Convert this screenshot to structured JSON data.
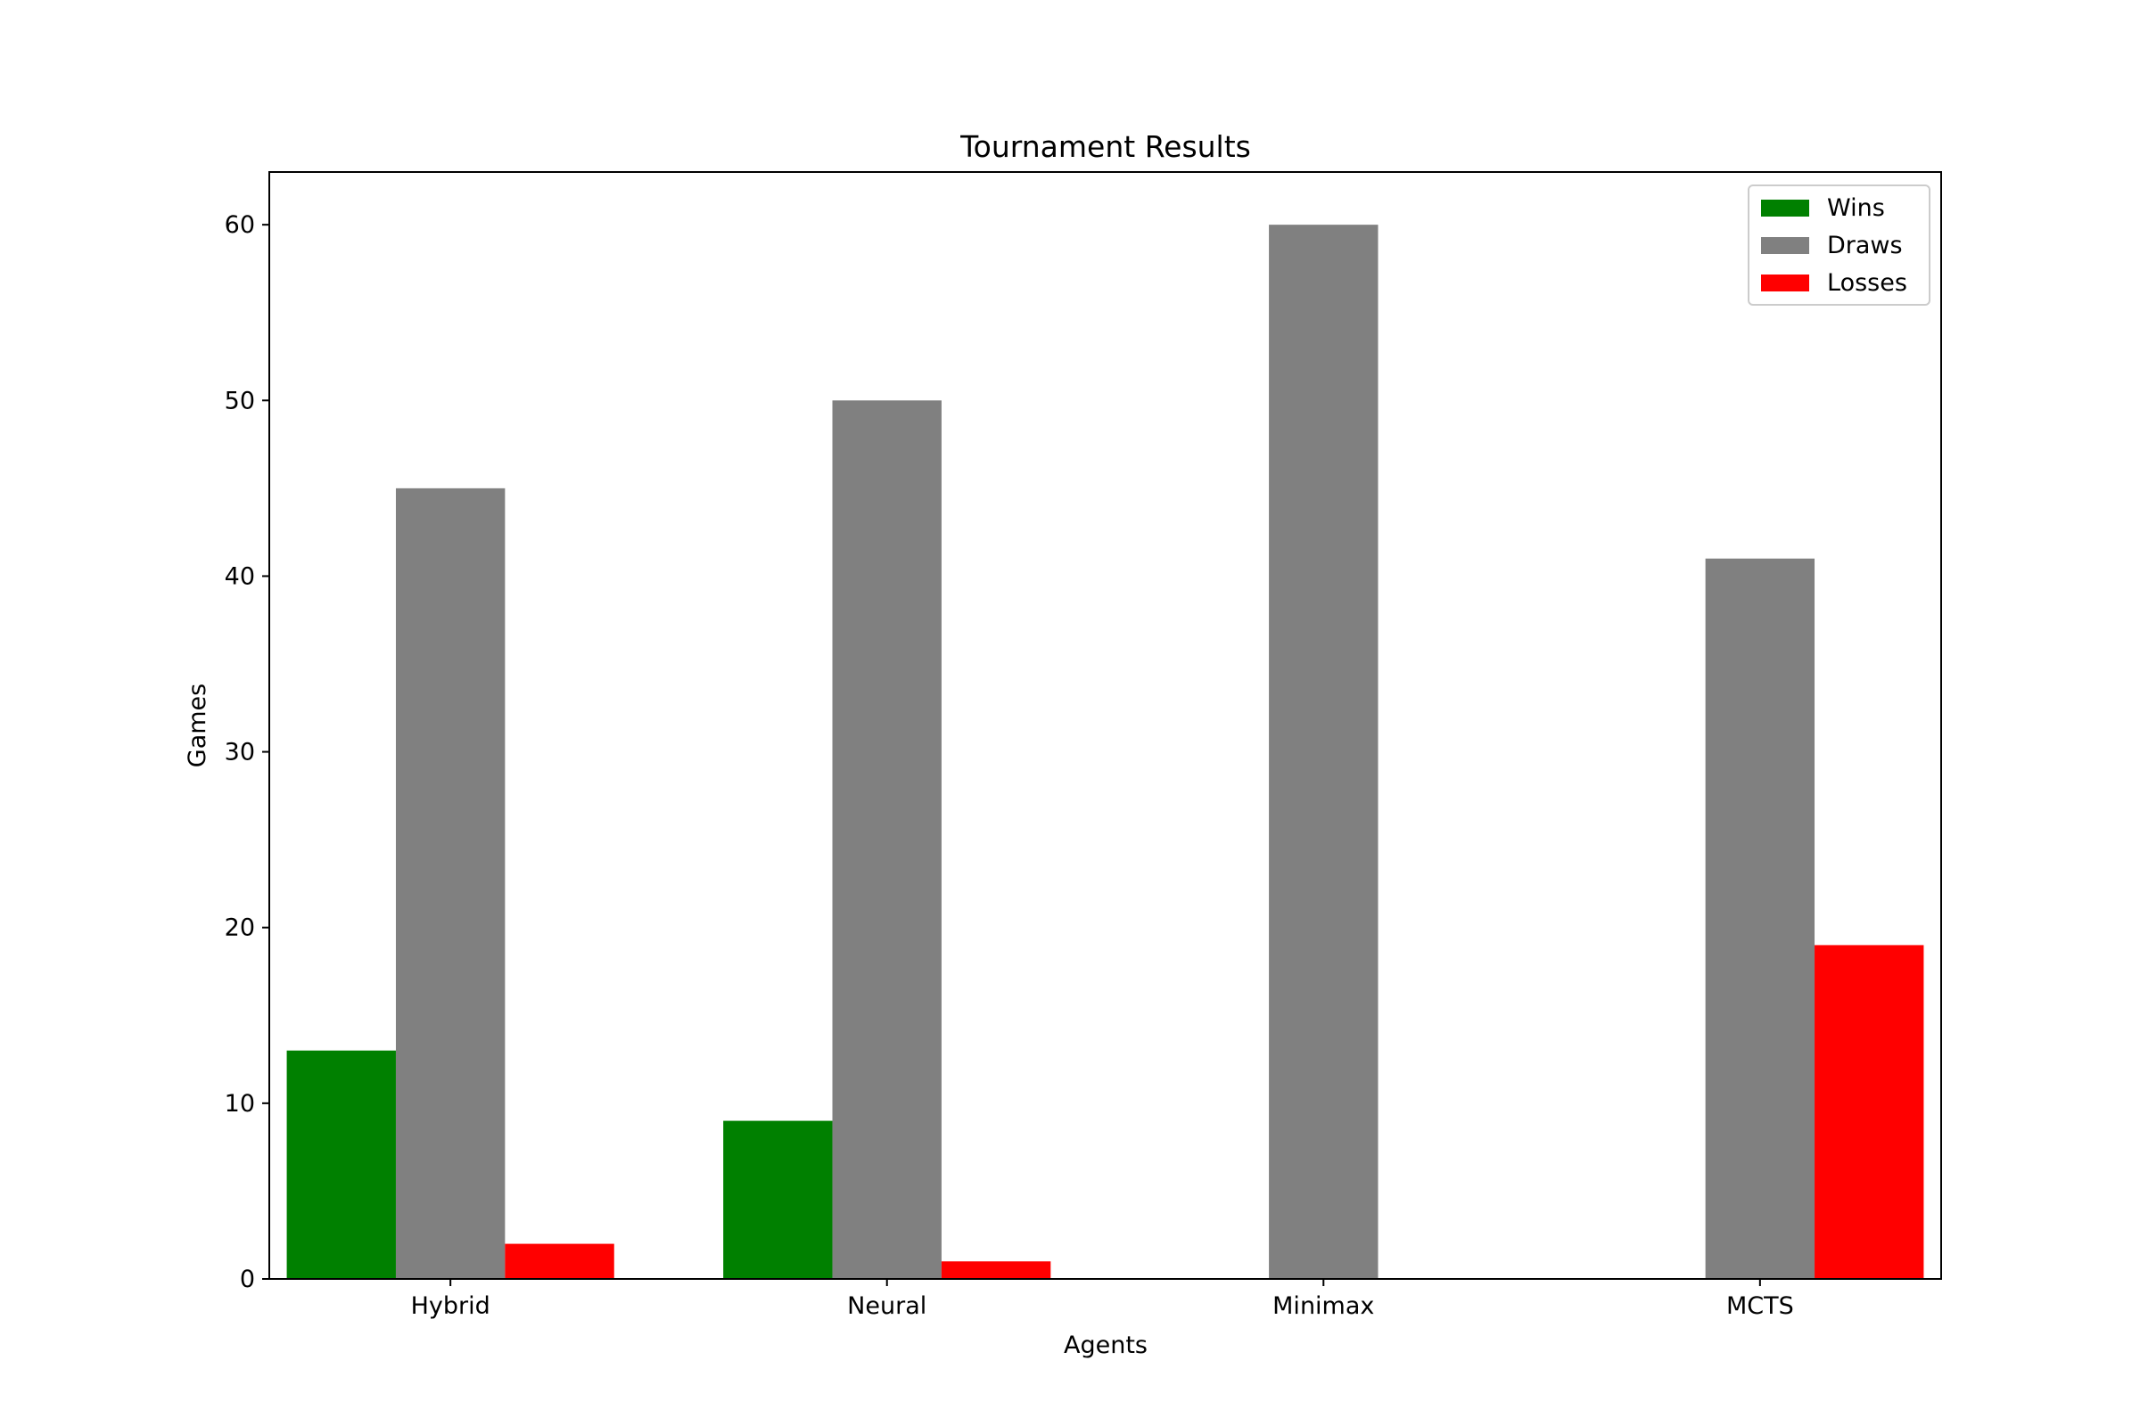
{
  "chart_data": {
    "type": "bar",
    "title": "Tournament Results",
    "xlabel": "Agents",
    "ylabel": "Games",
    "categories": [
      "Hybrid",
      "Neural",
      "Minimax",
      "MCTS"
    ],
    "series": [
      {
        "name": "Wins",
        "color": "#008000",
        "values": [
          13,
          9,
          0,
          0
        ]
      },
      {
        "name": "Draws",
        "color": "#808080",
        "values": [
          45,
          50,
          60,
          41
        ]
      },
      {
        "name": "Losses",
        "color": "#ff0000",
        "values": [
          2,
          1,
          0,
          19
        ]
      }
    ],
    "ylim": [
      0,
      63
    ],
    "yticks": [
      0,
      10,
      20,
      30,
      40,
      50,
      60
    ],
    "grid": false,
    "legend_position": "top-right"
  }
}
